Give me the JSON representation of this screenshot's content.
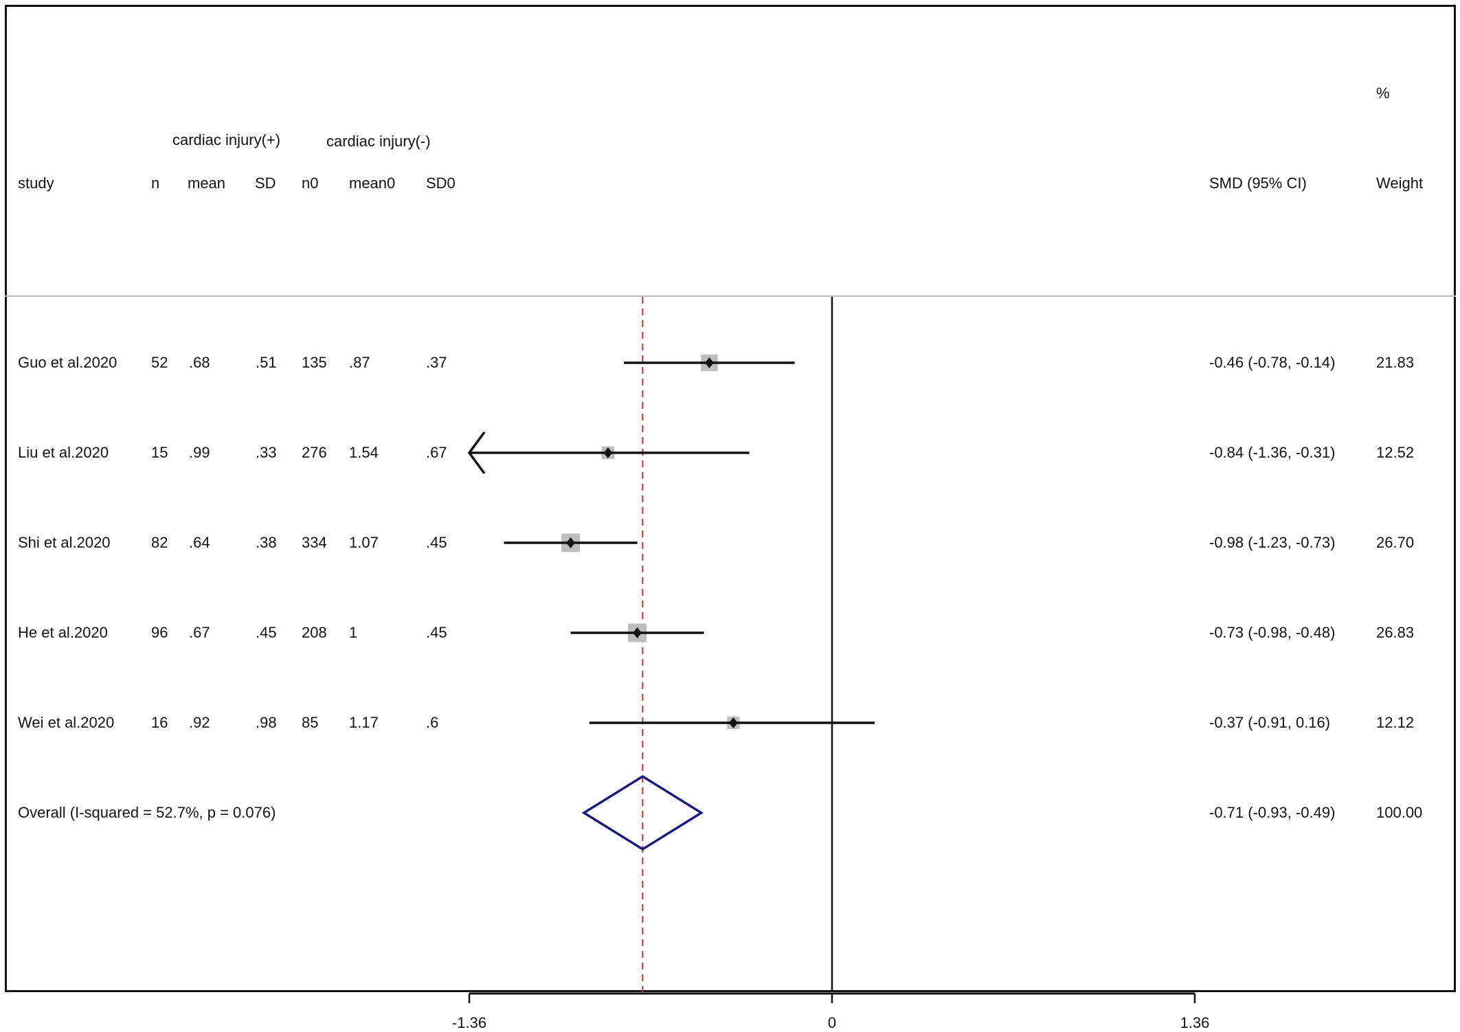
{
  "headers": {
    "group_pos": "cardiac injury(+)",
    "group_neg": "cardiac injury(-)",
    "percent": "%",
    "columns": [
      "study",
      "n",
      "mean",
      "SD",
      "n0",
      "mean0",
      "SD0"
    ],
    "effect": "SMD (95% CI)",
    "weight": "Weight"
  },
  "chart_data": {
    "type": "forest",
    "measure": "SMD",
    "null_line": 0,
    "overall_line": -0.71,
    "xticks": [
      -1.36,
      0,
      1.36
    ],
    "xtick_labels": [
      "-1.36",
      "0",
      "1.36"
    ],
    "xlim": [
      -1.36,
      1.36
    ],
    "studies": [
      {
        "study": "Guo et al.2020",
        "n": "52",
        "mean": ".68",
        "SD": ".51",
        "n0": "135",
        "mean0": ".87",
        "SD0": ".37",
        "smd": -0.46,
        "lo": -0.78,
        "hi": -0.14,
        "ci_text": "-0.46 (-0.78, -0.14)",
        "weight": 21.83,
        "weight_text": "21.83"
      },
      {
        "study": "Liu et al.2020",
        "n": "15",
        "mean": ".99",
        "SD": ".33",
        "n0": "276",
        "mean0": "1.54",
        "SD0": ".67",
        "smd": -0.84,
        "lo": -1.36,
        "hi": -0.31,
        "ci_text": "-0.84 (-1.36, -0.31)",
        "weight": 12.52,
        "weight_text": "12.52",
        "lo_clipped": true
      },
      {
        "study": "Shi et al.2020",
        "n": "82",
        "mean": ".64",
        "SD": ".38",
        "n0": "334",
        "mean0": "1.07",
        "SD0": ".45",
        "smd": -0.98,
        "lo": -1.23,
        "hi": -0.73,
        "ci_text": "-0.98 (-1.23, -0.73)",
        "weight": 26.7,
        "weight_text": "26.70"
      },
      {
        "study": "He et al.2020",
        "n": "96",
        "mean": ".67",
        "SD": ".45",
        "n0": "208",
        "mean0": "1",
        "SD0": ".45",
        "smd": -0.73,
        "lo": -0.98,
        "hi": -0.48,
        "ci_text": "-0.73 (-0.98, -0.48)",
        "weight": 26.83,
        "weight_text": "26.83"
      },
      {
        "study": "Wei et al.2020",
        "n": "16",
        "mean": ".92",
        "SD": ".98",
        "n0": "85",
        "mean0": "1.17",
        "SD0": ".6",
        "smd": -0.37,
        "lo": -0.91,
        "hi": 0.16,
        "ci_text": "-0.37 (-0.91, 0.16)",
        "weight": 12.12,
        "weight_text": "12.12"
      }
    ],
    "overall": {
      "label": "Overall  (I-squared = 52.7%, p = 0.076)",
      "smd": -0.71,
      "lo": -0.93,
      "hi": -0.49,
      "ci_text": "-0.71 (-0.93, -0.49)",
      "weight_text": "100.00"
    }
  }
}
